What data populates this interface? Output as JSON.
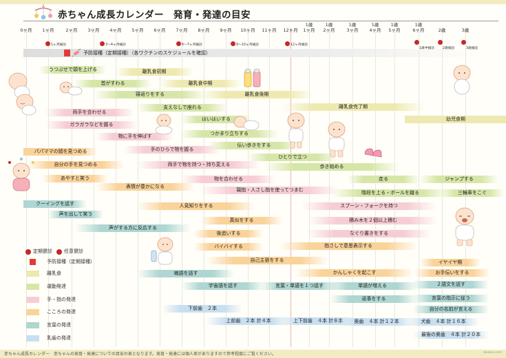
{
  "title": "赤ちゃん成長カレンダー　発育・発達の目安",
  "footer": "赤ちゃん成長カレンダー　赤ちゃんの発育・発達についての目安の表となります。発育・発達には個人差がありますので参考程度にご覧ください。",
  "credit": "daikaio.com",
  "timeline": [
    {
      "top": "",
      "bottom": "0ヶ月"
    },
    {
      "top": "",
      "bottom": "1ヶ月"
    },
    {
      "top": "",
      "bottom": "2ヶ月"
    },
    {
      "top": "",
      "bottom": "3ヶ月"
    },
    {
      "top": "",
      "bottom": "4ヶ月"
    },
    {
      "top": "",
      "bottom": "5ヶ月"
    },
    {
      "top": "",
      "bottom": "6ヶ月"
    },
    {
      "top": "",
      "bottom": "7ヶ月"
    },
    {
      "top": "",
      "bottom": "8ヶ月"
    },
    {
      "top": "",
      "bottom": "9ヶ月"
    },
    {
      "top": "",
      "bottom": "10ヶ月"
    },
    {
      "top": "",
      "bottom": "11ヶ月"
    },
    {
      "top": "",
      "bottom": "12ヶ月"
    },
    {
      "top": "1歳",
      "bottom": "1ヶ月"
    },
    {
      "top": "1歳",
      "bottom": "2ヶ月"
    },
    {
      "top": "1歳",
      "bottom": "3ヶ月"
    },
    {
      "top": "1歳",
      "bottom": "4ヶ月"
    },
    {
      "top": "1歳",
      "bottom": "5ヶ月"
    },
    {
      "top": "1歳",
      "bottom": "6ヶ月"
    },
    {
      "top": "",
      "bottom": "2歳"
    },
    {
      "top": "",
      "bottom": "3歳"
    }
  ],
  "checkups": [
    {
      "label": "1ヶ月検診",
      "kind": "optional"
    },
    {
      "label": "3〜4ヶ月検診",
      "kind": "optional"
    },
    {
      "label": "6〜7ヶ月検診",
      "kind": "optional"
    },
    {
      "label": "9〜10ヶ月検診",
      "kind": "optional"
    },
    {
      "label": "12ヶ月検診",
      "kind": "optional"
    },
    {
      "label": "1歳半検診",
      "kind": "scheduled"
    },
    {
      "label": "2歳検診",
      "kind": "scheduled"
    },
    {
      "label": "3歳検診",
      "kind": "scheduled"
    }
  ],
  "vaccination": "予防接種（定期接種）（各ワクチンのスケジュールを確認）",
  "colors": {
    "food": "#eee9b0",
    "motor": "#d6e6a8",
    "hand": "#f7cdd4",
    "mind": "#fad39a",
    "language": "#aed6d2",
    "teeth": "#c8dff1",
    "checkup": "#c62828",
    "vaccine": "#e23a3a"
  },
  "milestones": [
    {
      "label": "うつぶせで頭を上げる",
      "cat": "motor"
    },
    {
      "label": "離乳食初期",
      "cat": "food"
    },
    {
      "label": "首がすわる",
      "cat": "motor"
    },
    {
      "label": "離乳食中期",
      "cat": "food"
    },
    {
      "label": "寝返りをする",
      "cat": "motor"
    },
    {
      "label": "離乳食後期",
      "cat": "food"
    },
    {
      "label": "支えなしで座れる",
      "cat": "motor"
    },
    {
      "label": "離乳食完了期",
      "cat": "food"
    },
    {
      "label": "両手を合わせる",
      "cat": "hand"
    },
    {
      "label": "はいはいする",
      "cat": "motor"
    },
    {
      "label": "幼児食期",
      "cat": "food"
    },
    {
      "label": "ガラガラなどを握る",
      "cat": "hand"
    },
    {
      "label": "つかまり立ちする",
      "cat": "motor"
    },
    {
      "label": "物に手を伸ばす",
      "cat": "hand"
    },
    {
      "label": "伝い歩きをする",
      "cat": "motor"
    },
    {
      "label": "手のひらで物を握る",
      "cat": "hand"
    },
    {
      "label": "パパママの顔を見つめる",
      "cat": "mind"
    },
    {
      "label": "ひとりで立つ",
      "cat": "motor"
    },
    {
      "label": "自分の手を見つめる",
      "cat": "mind"
    },
    {
      "label": "両手で物を持つ・持ち変える",
      "cat": "hand"
    },
    {
      "label": "歩き始める",
      "cat": "motor"
    },
    {
      "label": "あやすと笑う",
      "cat": "mind"
    },
    {
      "label": "物を合わせる",
      "cat": "hand"
    },
    {
      "label": "走る",
      "cat": "motor"
    },
    {
      "label": "ジャンプする",
      "cat": "motor"
    },
    {
      "label": "表情が豊かになる",
      "cat": "mind"
    },
    {
      "label": "親指・人さし指を使ってつまむ",
      "cat": "hand"
    },
    {
      "label": "階段を上る・ボールを蹴る",
      "cat": "motor"
    },
    {
      "label": "三輪車をこぐ",
      "cat": "motor"
    },
    {
      "label": "クーイングを話す",
      "cat": "language"
    },
    {
      "label": "人見知りをする",
      "cat": "mind"
    },
    {
      "label": "スプーン・フォークを持つ",
      "cat": "hand"
    },
    {
      "label": "声を出して笑う",
      "cat": "language"
    },
    {
      "label": "真似をする",
      "cat": "mind"
    },
    {
      "label": "積み木を２個以上積む",
      "cat": "hand"
    },
    {
      "label": "声がする方に反応する",
      "cat": "language"
    },
    {
      "label": "後追いする",
      "cat": "mind"
    },
    {
      "label": "なぐり書きをする",
      "cat": "hand"
    },
    {
      "label": "バイバイする",
      "cat": "mind"
    },
    {
      "label": "指さしで意思表示する",
      "cat": "mind"
    },
    {
      "label": "自己主張をする",
      "cat": "mind"
    },
    {
      "label": "イヤイヤ期",
      "cat": "mind"
    },
    {
      "label": "喃語を話す",
      "cat": "language"
    },
    {
      "label": "かんしゃくを起こす",
      "cat": "mind"
    },
    {
      "label": "お手伝いをする",
      "cat": "mind"
    },
    {
      "label": "宇宙語を話す",
      "cat": "language"
    },
    {
      "label": "言葉・単語を１つ話す",
      "cat": "language"
    },
    {
      "label": "単語が増える",
      "cat": "language"
    },
    {
      "label": "２語文を話す",
      "cat": "language"
    },
    {
      "label": "返事をする",
      "cat": "language"
    },
    {
      "label": "言葉の指示に従う",
      "cat": "language"
    },
    {
      "label": "下前歯　２本",
      "cat": "teeth"
    },
    {
      "label": "自分の名前が言える",
      "cat": "language"
    },
    {
      "label": "上前歯　２本 計４本",
      "cat": "teeth"
    },
    {
      "label": "上下前歯　４本 計８本",
      "cat": "teeth"
    },
    {
      "label": "奥歯　４本 計１２本",
      "cat": "teeth"
    },
    {
      "label": "犬歯　４本 計１６本",
      "cat": "teeth"
    },
    {
      "label": "最後の奥歯　４本 計２０本",
      "cat": "teeth"
    }
  ],
  "legend": {
    "checkup_scheduled": "定期健診",
    "checkup_optional": "任意健診",
    "vaccine": "予防接種（定期接種）",
    "items": [
      {
        "label": "離乳食",
        "cat": "food"
      },
      {
        "label": "運動発達",
        "cat": "motor"
      },
      {
        "label": "手・指の発達",
        "cat": "hand"
      },
      {
        "label": "こころの発達",
        "cat": "mind"
      },
      {
        "label": "言葉の発達",
        "cat": "language"
      },
      {
        "label": "乳歯の発達",
        "cat": "teeth"
      }
    ]
  }
}
